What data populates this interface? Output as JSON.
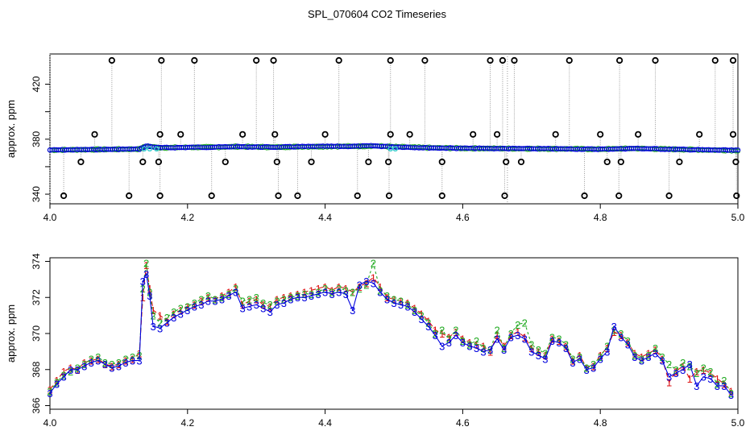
{
  "figure": {
    "title": "SPL_070604  CO2 Timeseries"
  },
  "colors": {
    "frame": "#000000",
    "grey_lines": "#9a9a9a",
    "outlier_marker": "#000000",
    "blue": "#0000dd",
    "cyan": "#33cccc",
    "green": "#22aa22",
    "red": "#dd1111"
  },
  "chart_data": [
    {
      "type": "scatter",
      "title": "",
      "xlabel": "",
      "ylabel": "approx. ppm",
      "xlim": [
        4.0,
        5.0
      ],
      "ylim": [
        333,
        442
      ],
      "x_ticks": [
        "4.0",
        "4.2",
        "4.4",
        "4.6",
        "4.8",
        "5.0"
      ],
      "y_ticks": [
        "340",
        "",
        "380",
        "",
        "420"
      ],
      "y_tick_values": [
        340,
        360,
        380,
        400,
        420
      ],
      "grid": false,
      "baseline": [
        [
          4.0,
          367.5
        ],
        [
          4.05,
          368.0
        ],
        [
          4.1,
          368.5
        ],
        [
          4.13,
          368.7
        ],
        [
          4.14,
          372.8
        ],
        [
          4.16,
          370.5
        ],
        [
          4.2,
          371.0
        ],
        [
          4.25,
          371.5
        ],
        [
          4.27,
          372.0
        ],
        [
          4.3,
          371.6
        ],
        [
          4.33,
          371.3
        ],
        [
          4.36,
          371.9
        ],
        [
          4.4,
          372.2
        ],
        [
          4.45,
          372.5
        ],
        [
          4.47,
          373.0
        ],
        [
          4.5,
          371.8
        ],
        [
          4.55,
          370.5
        ],
        [
          4.6,
          369.8
        ],
        [
          4.65,
          369.5
        ],
        [
          4.7,
          369.3
        ],
        [
          4.75,
          369.0
        ],
        [
          4.8,
          368.6
        ],
        [
          4.85,
          369.6
        ],
        [
          4.9,
          368.6
        ],
        [
          4.95,
          367.7
        ],
        [
          5.0,
          367.0
        ]
      ],
      "outliers_high": [
        4.09,
        4.162,
        4.21,
        4.3,
        4.325,
        4.42,
        4.495,
        4.545,
        4.64,
        4.658,
        4.675,
        4.755,
        4.828,
        4.88,
        4.967,
        4.993
      ],
      "outliers_upper": [
        4.065,
        4.16,
        4.19,
        4.28,
        4.327,
        4.4,
        4.495,
        4.523,
        4.615,
        4.65,
        4.735,
        4.8,
        4.855,
        4.944,
        4.993
      ],
      "outliers_low": [
        4.045,
        4.135,
        4.158,
        4.255,
        4.33,
        4.38,
        4.463,
        4.492,
        4.57,
        4.663,
        4.685,
        4.81,
        4.83,
        4.915,
        4.997
      ],
      "outliers_bottom": [
        4.02,
        4.115,
        4.16,
        4.235,
        4.332,
        4.36,
        4.447,
        4.493,
        4.57,
        4.661,
        4.777,
        4.827,
        4.9,
        4.998
      ],
      "series": [
        {
          "name": "",
          "marker": "o",
          "color_key": "blue"
        },
        {
          "name": "",
          "marker": "o",
          "color_key": "cyan"
        }
      ]
    },
    {
      "type": "line",
      "title": "",
      "xlabel": "",
      "ylabel": "approx. ppm",
      "xlim": [
        4.0,
        5.0
      ],
      "ylim": [
        365.8,
        374.2
      ],
      "x_ticks": [
        "4.0",
        "4.2",
        "4.4",
        "4.6",
        "4.8",
        "5.0"
      ],
      "y_ticks": [
        "366",
        "368",
        "370",
        "372",
        "374"
      ],
      "y_tick_values": [
        366,
        368,
        370,
        372,
        374
      ],
      "grid": false,
      "x": [
        4.0,
        4.01,
        4.02,
        4.03,
        4.04,
        4.05,
        4.06,
        4.07,
        4.08,
        4.09,
        4.1,
        4.11,
        4.12,
        4.13,
        4.135,
        4.14,
        4.145,
        4.15,
        4.16,
        4.17,
        4.18,
        4.19,
        4.2,
        4.21,
        4.22,
        4.23,
        4.24,
        4.25,
        4.26,
        4.27,
        4.28,
        4.29,
        4.3,
        4.31,
        4.32,
        4.33,
        4.34,
        4.35,
        4.36,
        4.37,
        4.38,
        4.39,
        4.4,
        4.41,
        4.42,
        4.43,
        4.44,
        4.45,
        4.46,
        4.47,
        4.48,
        4.49,
        4.5,
        4.51,
        4.52,
        4.53,
        4.54,
        4.55,
        4.56,
        4.57,
        4.58,
        4.59,
        4.6,
        4.61,
        4.62,
        4.63,
        4.64,
        4.65,
        4.66,
        4.67,
        4.68,
        4.69,
        4.7,
        4.71,
        4.72,
        4.73,
        4.74,
        4.75,
        4.76,
        4.77,
        4.78,
        4.79,
        4.8,
        4.81,
        4.82,
        4.83,
        4.84,
        4.85,
        4.86,
        4.87,
        4.88,
        4.89,
        4.9,
        4.91,
        4.92,
        4.93,
        4.94,
        4.95,
        4.96,
        4.97,
        4.98,
        4.99
      ],
      "series": [
        {
          "name": "1",
          "color_key": "red",
          "values": [
            366.9,
            367.4,
            367.9,
            368.1,
            368.0,
            368.4,
            368.5,
            368.6,
            368.3,
            368.2,
            368.3,
            368.5,
            368.6,
            368.9,
            372.0,
            373.8,
            372.5,
            371.3,
            371.0,
            370.7,
            371.1,
            371.3,
            371.5,
            371.6,
            371.8,
            372.0,
            371.9,
            372.1,
            372.3,
            372.6,
            371.6,
            371.8,
            371.9,
            371.6,
            371.5,
            371.9,
            372.0,
            372.1,
            372.2,
            372.3,
            372.4,
            372.5,
            372.6,
            372.4,
            372.6,
            372.5,
            372.3,
            372.6,
            372.8,
            373.1,
            372.6,
            372.0,
            371.9,
            371.8,
            371.7,
            371.4,
            371.1,
            370.7,
            370.2,
            370.0,
            369.8,
            370.1,
            369.7,
            369.5,
            369.4,
            369.3,
            369.0,
            369.9,
            369.3,
            369.9,
            370.1,
            369.8,
            369.2,
            369.0,
            368.8,
            369.7,
            369.6,
            369.3,
            368.5,
            368.8,
            368.1,
            368.2,
            368.8,
            369.2,
            370.1,
            369.9,
            369.5,
            368.9,
            368.7,
            368.9,
            369.1,
            368.6,
            367.3,
            367.9,
            368.2,
            367.5,
            367.9,
            368.0,
            367.8,
            367.5,
            367.2,
            366.8
          ]
        },
        {
          "name": "2",
          "color_key": "green",
          "values": [
            366.8,
            367.3,
            367.7,
            367.9,
            368.1,
            368.3,
            368.6,
            368.7,
            368.4,
            368.3,
            368.4,
            368.6,
            368.7,
            368.8,
            372.5,
            373.9,
            372.3,
            371.0,
            370.6,
            370.9,
            371.2,
            371.4,
            371.5,
            371.7,
            371.9,
            372.1,
            371.9,
            372.0,
            372.2,
            372.5,
            371.8,
            371.9,
            372.0,
            371.7,
            371.6,
            371.8,
            371.9,
            372.0,
            372.1,
            372.2,
            372.2,
            372.3,
            372.5,
            372.3,
            372.5,
            372.4,
            372.3,
            372.5,
            372.7,
            373.9,
            372.4,
            372.1,
            371.9,
            371.8,
            371.6,
            371.3,
            371.0,
            370.6,
            370.0,
            370.2,
            369.7,
            370.2,
            369.6,
            369.4,
            369.6,
            369.2,
            369.1,
            370.2,
            369.2,
            370.0,
            370.5,
            370.6,
            369.4,
            369.1,
            368.9,
            369.8,
            369.7,
            369.4,
            368.6,
            368.7,
            368.1,
            368.3,
            368.7,
            369.3,
            370.2,
            370.0,
            369.6,
            368.8,
            368.6,
            368.8,
            369.2,
            368.7,
            368.3,
            368.0,
            368.4,
            368.2,
            367.8,
            368.1,
            367.9,
            367.2,
            367.4,
            366.7
          ]
        },
        {
          "name": "3",
          "color_key": "blue",
          "values": [
            366.7,
            367.2,
            367.6,
            368.0,
            368.0,
            368.2,
            368.4,
            368.5,
            368.3,
            368.1,
            368.2,
            368.4,
            368.5,
            368.5,
            372.9,
            373.3,
            372.1,
            370.4,
            370.3,
            370.6,
            370.9,
            371.1,
            371.3,
            371.5,
            371.6,
            371.8,
            371.8,
            371.9,
            372.1,
            372.3,
            371.4,
            371.5,
            371.6,
            371.4,
            371.2,
            371.6,
            371.7,
            371.9,
            372.0,
            372.0,
            372.1,
            372.2,
            372.3,
            372.2,
            372.3,
            372.2,
            371.3,
            372.7,
            372.9,
            372.8,
            372.3,
            371.9,
            371.7,
            371.6,
            371.5,
            371.2,
            370.8,
            370.4,
            369.9,
            369.3,
            369.5,
            369.9,
            369.5,
            369.3,
            369.2,
            369.0,
            369.1,
            369.7,
            369.1,
            369.8,
            369.9,
            369.7,
            369.0,
            368.8,
            368.6,
            369.6,
            369.5,
            369.2,
            368.4,
            368.6,
            368.0,
            368.1,
            368.6,
            369.0,
            370.4,
            369.8,
            369.4,
            368.7,
            368.5,
            368.7,
            368.9,
            368.5,
            367.6,
            367.8,
            368.0,
            368.3,
            367.1,
            367.6,
            367.5,
            367.1,
            367.1,
            366.6
          ]
        }
      ]
    }
  ]
}
